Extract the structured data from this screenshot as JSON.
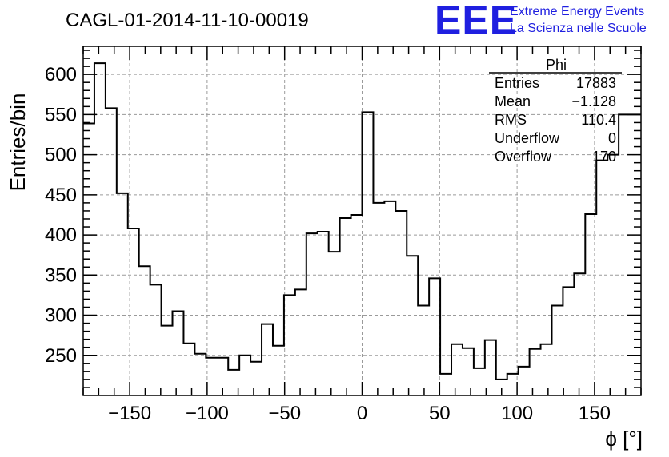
{
  "chart_data": {
    "type": "bar",
    "title": "CAGL-01-2014-11-10-00019",
    "xlabel": "ϕ [°]",
    "ylabel": "Entries/bin",
    "xlim": [
      -180,
      180
    ],
    "ylim": [
      200,
      635
    ],
    "bin_width": 7.2,
    "x_ticks": [
      -150,
      -100,
      -50,
      0,
      50,
      100,
      150
    ],
    "y_ticks": [
      250,
      300,
      350,
      400,
      450,
      500,
      550,
      600
    ],
    "grid": true,
    "values": [
      539,
      614,
      558,
      452,
      408,
      361,
      338,
      287,
      305,
      265,
      252,
      247,
      247,
      232,
      250,
      242,
      289,
      262,
      325,
      332,
      402,
      404,
      379,
      421,
      425,
      553,
      440,
      442,
      430,
      374,
      312,
      346,
      227,
      264,
      259,
      234,
      269,
      220,
      227,
      236,
      258,
      264,
      312,
      335,
      352,
      426,
      493,
      500,
      550,
      550
    ],
    "stats": {
      "name": "Phi",
      "rows": [
        {
          "label": "Entries",
          "value": "17883"
        },
        {
          "label": "Mean",
          "value": "−1.128"
        },
        {
          "label": "RMS",
          "value": "110.4"
        },
        {
          "label": "Underflow",
          "value": "0"
        },
        {
          "label": "Overflow",
          "value": "170"
        }
      ]
    }
  },
  "logo": {
    "text": "EEE",
    "line1": "Extreme Energy Events",
    "line2": "La Scienza nelle Scuole"
  }
}
